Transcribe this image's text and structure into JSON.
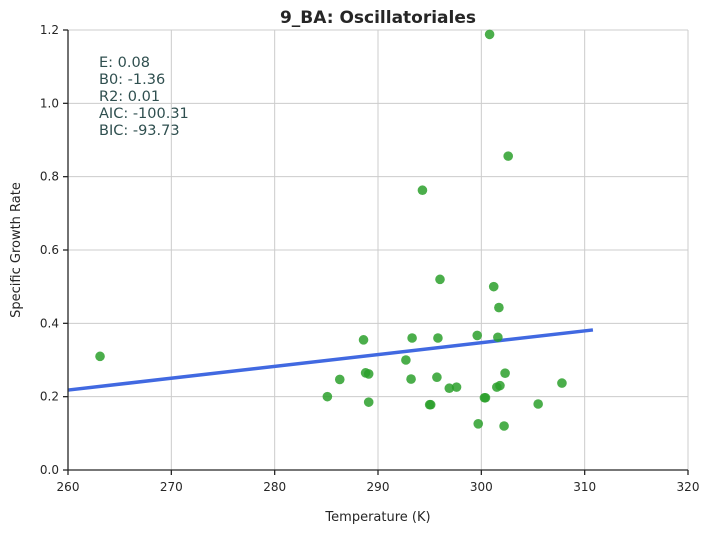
{
  "chart_data": {
    "type": "scatter",
    "title": "9_BA: Oscillatoriales",
    "xlabel": "Temperature (K)",
    "ylabel": "Specific Growth Rate",
    "xlim": [
      260,
      320
    ],
    "ylim": [
      0.0,
      1.2
    ],
    "xticks": [
      "260",
      "270",
      "280",
      "290",
      "300",
      "310",
      "320"
    ],
    "yticks": [
      "0.0",
      "0.2",
      "0.4",
      "0.6",
      "0.8",
      "1.0",
      "1.2"
    ],
    "grid": true,
    "annotations": [
      "E:  0.08",
      "B0:  -1.36",
      "R2:  0.01",
      "AIC: -100.31",
      "BIC: -93.73"
    ],
    "colors": {
      "points": "#2ca02c",
      "fit": "#4169e1"
    },
    "points": {
      "x": [
        263.1,
        285.1,
        286.3,
        288.6,
        288.8,
        289.1,
        289.1,
        292.7,
        293.2,
        293.3,
        294.3,
        295.0,
        295.1,
        295.7,
        295.8,
        296.0,
        296.9,
        297.6,
        299.6,
        299.7,
        300.3,
        300.4,
        300.8,
        301.2,
        301.5,
        301.6,
        301.7,
        301.8,
        302.2,
        302.3,
        302.6,
        305.5,
        307.8
      ],
      "y": [
        0.31,
        0.2,
        0.247,
        0.355,
        0.265,
        0.262,
        0.185,
        0.3,
        0.248,
        0.36,
        0.763,
        0.178,
        0.178,
        0.253,
        0.36,
        0.52,
        0.223,
        0.226,
        0.367,
        0.126,
        0.197,
        0.197,
        1.188,
        0.5,
        0.226,
        0.362,
        0.443,
        0.23,
        0.12,
        0.264,
        0.856,
        0.18,
        0.237
      ]
    },
    "fit_line": {
      "x": [
        260,
        310.8
      ],
      "y": [
        0.218,
        0.382
      ]
    }
  }
}
